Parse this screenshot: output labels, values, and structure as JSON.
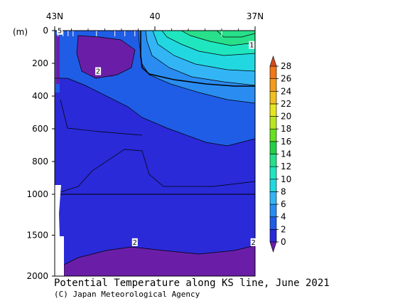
{
  "chart_data": {
    "type": "heatmap",
    "title": "Potential Temperature along KS line, June 2021",
    "credit": "(C) Japan Meteorological Agency",
    "ylabel": "(m)",
    "x_ticks": [
      {
        "label": "43N",
        "lat": 43
      },
      {
        "label": "40",
        "lat": 40
      },
      {
        "label": "37N",
        "lat": 37
      }
    ],
    "xlim": [
      43,
      37
    ],
    "y_ticks_upper": [
      "0",
      "200",
      "400",
      "600",
      "800",
      "1000"
    ],
    "y_ticks_lower": [
      "1500",
      "2000"
    ],
    "y_break_depth": 1000,
    "ylim": [
      0,
      2000
    ],
    "colorbar": {
      "labels": [
        "0",
        "2",
        "4",
        "6",
        "8",
        "10",
        "12",
        "14",
        "16",
        "18",
        "20",
        "22",
        "24",
        "26",
        "28"
      ],
      "values": [
        0,
        2,
        4,
        6,
        8,
        10,
        12,
        14,
        16,
        18,
        20,
        22,
        24,
        26,
        28
      ],
      "colors": [
        "#6a1ea8",
        "#2a2ad8",
        "#1f5de6",
        "#2a8cf0",
        "#33b5f5",
        "#22d8e0",
        "#20e6c0",
        "#28e08a",
        "#22d046",
        "#66e020",
        "#b8e620",
        "#e6e620",
        "#f0c020",
        "#f39c1c",
        "#f07818",
        "#d84a1e"
      ],
      "extend": "both"
    },
    "contour_labels": [
      {
        "text": "5",
        "lat": 42.85,
        "depth": 3
      },
      {
        "text": "1",
        "lat": 37.1,
        "depth": 90
      },
      {
        "text": "2",
        "lat": 41.7,
        "depth": 250
      },
      {
        "text": "2",
        "lat": 40.6,
        "depth": 1590
      },
      {
        "text": "2",
        "lat": 37.05,
        "depth": 1590
      }
    ],
    "colors": {
      "deep_blue": "#2a2ad8",
      "purple": "#6a1ea8",
      "cyan": "#22d8e0",
      "green": "#28e08a"
    }
  }
}
